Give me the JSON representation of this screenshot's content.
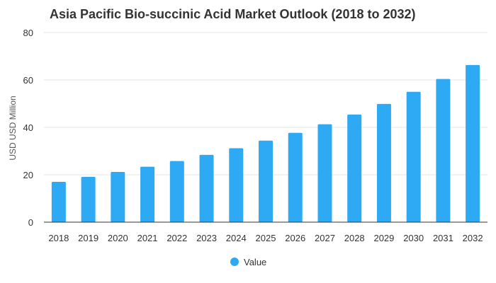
{
  "chart_data": {
    "type": "bar",
    "title": "Asia Pacific Bio-succinic Acid Market Outlook (2018 to 2032)",
    "xlabel": "",
    "ylabel": "USD USD Million",
    "categories": [
      "2018",
      "2019",
      "2020",
      "2021",
      "2022",
      "2023",
      "2024",
      "2025",
      "2026",
      "2027",
      "2028",
      "2029",
      "2030",
      "2031",
      "2032"
    ],
    "series": [
      {
        "name": "Value",
        "color": "#2eaaf5",
        "values": [
          17.0,
          19.1,
          21.2,
          23.4,
          25.8,
          28.4,
          31.2,
          34.4,
          37.7,
          41.3,
          45.4,
          49.9,
          55.0,
          60.4,
          66.3
        ]
      }
    ],
    "ylim": [
      0,
      80
    ],
    "yticks": [
      0,
      20,
      40,
      60,
      80
    ],
    "grid": true,
    "legend": "bottom-center"
  }
}
